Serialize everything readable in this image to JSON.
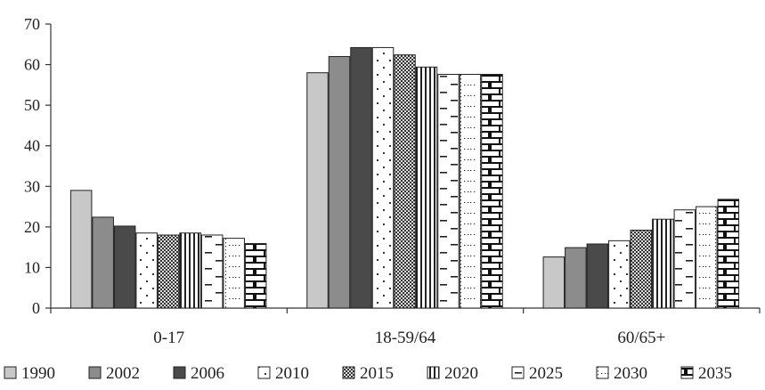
{
  "chart_data": {
    "type": "bar",
    "categories": [
      "0-17",
      "18-59/64",
      "60/65+"
    ],
    "series": [
      {
        "name": "1990",
        "values": [
          29.0,
          58.0,
          12.6
        ],
        "pattern": "solid-light",
        "color": "#c8c8c8"
      },
      {
        "name": "2002",
        "values": [
          22.4,
          62.0,
          14.9
        ],
        "pattern": "solid-mid",
        "color": "#8c8c8c"
      },
      {
        "name": "2006",
        "values": [
          20.2,
          64.2,
          15.8
        ],
        "pattern": "solid-dark",
        "color": "#4a4a4a"
      },
      {
        "name": "2010",
        "values": [
          18.5,
          64.2,
          16.6
        ],
        "pattern": "dots",
        "color": "#ffffff"
      },
      {
        "name": "2015",
        "values": [
          18.0,
          62.4,
          19.2
        ],
        "pattern": "checker",
        "color": "#666666"
      },
      {
        "name": "2020",
        "values": [
          18.5,
          59.4,
          21.9
        ],
        "pattern": "vertical-lines",
        "color": "#ffffff"
      },
      {
        "name": "2025",
        "values": [
          18.0,
          57.6,
          24.2
        ],
        "pattern": "dashes",
        "color": "#ffffff"
      },
      {
        "name": "2030",
        "values": [
          17.2,
          57.6,
          25.0
        ],
        "pattern": "dotted-grid",
        "color": "#ffffff"
      },
      {
        "name": "2035",
        "values": [
          15.9,
          57.6,
          26.8
        ],
        "pattern": "brick",
        "color": "#ffffff"
      }
    ],
    "title": "",
    "xlabel": "",
    "ylabel": "",
    "ylim": [
      0,
      70
    ],
    "yticks": [
      0,
      10,
      20,
      30,
      40,
      50,
      60,
      70
    ],
    "grid": false,
    "legend": "bottom"
  }
}
